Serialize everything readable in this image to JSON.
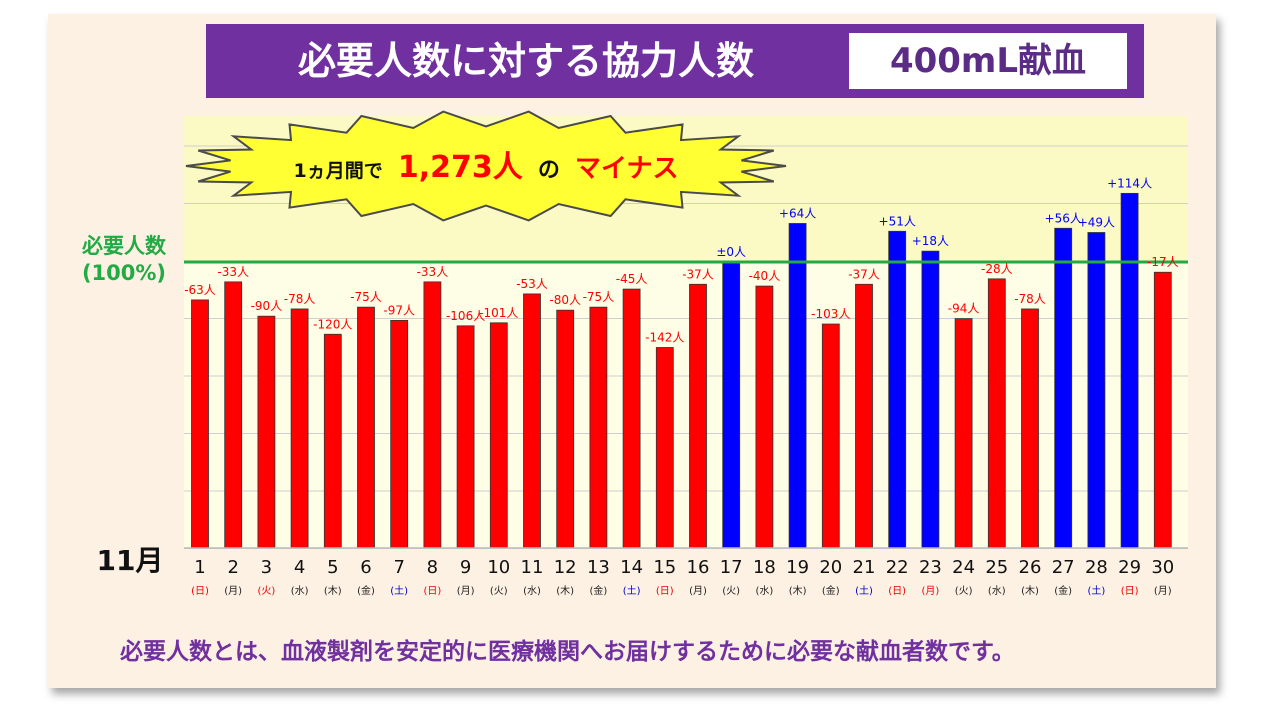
{
  "header": {
    "title": "必要人数に対する協力人数",
    "category": "400mL献血"
  },
  "callout": {
    "prefix": "1ヵ月間で",
    "amount": "1,273人",
    "particle": "の",
    "suffix": "マイナス"
  },
  "reference_line": {
    "label_line1": "必要人数",
    "label_line2": "(100%)",
    "color": "#22aa44"
  },
  "month_label": "11月",
  "footer": {
    "note": "必要人数とは、血液製剤を安定的に医療機関へお届けするために必要な献血者数です。"
  },
  "colors": {
    "shortfall": "#ff0000",
    "surplus": "#0000ff",
    "weekday": "#222222",
    "sunday_holiday": "#ee0000",
    "saturday": "#0000cc"
  },
  "chart_data": {
    "type": "bar",
    "title": "必要人数に対する協力人数",
    "xlabel": "11月",
    "ylabel": "",
    "ylim": [
      -475,
      140
    ],
    "reference_value": 0,
    "reference_label": "必要人数 (100%)",
    "grid": true,
    "categories": [
      "1",
      "2",
      "3",
      "4",
      "5",
      "6",
      "7",
      "8",
      "9",
      "10",
      "11",
      "12",
      "13",
      "14",
      "15",
      "16",
      "17",
      "18",
      "19",
      "20",
      "21",
      "22",
      "23",
      "24",
      "25",
      "26",
      "27",
      "28",
      "29",
      "30"
    ],
    "weekdays": [
      "(日)",
      "(月)",
      "(火)",
      "(水)",
      "(木)",
      "(金)",
      "(土)",
      "(日)",
      "(月)",
      "(火)",
      "(水)",
      "(木)",
      "(金)",
      "(土)",
      "(日)",
      "(月)",
      "(火)",
      "(水)",
      "(木)",
      "(金)",
      "(土)",
      "(日)",
      "(月)",
      "(火)",
      "(水)",
      "(木)",
      "(金)",
      "(土)",
      "(日)",
      "(月)"
    ],
    "weekday_colors": [
      "red",
      "black",
      "red",
      "black",
      "black",
      "black",
      "blue",
      "red",
      "black",
      "black",
      "black",
      "black",
      "black",
      "blue",
      "red",
      "black",
      "black",
      "black",
      "black",
      "black",
      "blue",
      "red",
      "red",
      "black",
      "black",
      "black",
      "black",
      "blue",
      "red",
      "black"
    ],
    "values": [
      -63,
      -33,
      -90,
      -78,
      -120,
      -75,
      -97,
      -33,
      -106,
      -101,
      -53,
      -80,
      -75,
      -45,
      -142,
      -37,
      0,
      -40,
      64,
      -103,
      -37,
      51,
      18,
      -94,
      -28,
      -78,
      56,
      49,
      114,
      -17
    ],
    "data_labels": [
      "-63人",
      "-33人",
      "-90人",
      "-78人",
      "-120人",
      "-75人",
      "-97人",
      "-33人",
      "-106人",
      "-101人",
      "-53人",
      "-80人",
      "-75人",
      "-45人",
      "-142人",
      "-37人",
      "±0人",
      "-40人",
      "+64人",
      "-103人",
      "-37人",
      "+51人",
      "+18人",
      "-94人",
      "-28人",
      "-78人",
      "+56人",
      "+49人",
      "+114人",
      "-17人"
    ]
  }
}
